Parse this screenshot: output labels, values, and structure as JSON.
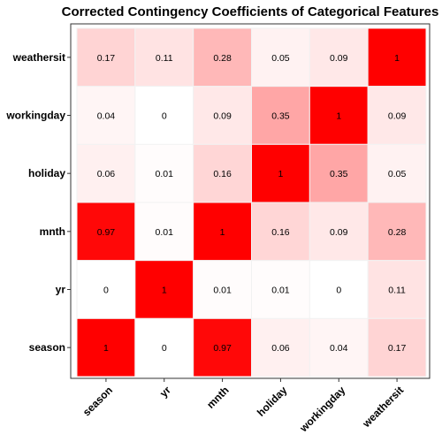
{
  "chart_data": {
    "type": "heatmap",
    "title": "Corrected Contingency Coefficients of Categorical Features",
    "x_categories": [
      "season",
      "yr",
      "mnth",
      "holiday",
      "workingday",
      "weathersit"
    ],
    "y_categories": [
      "season",
      "yr",
      "mnth",
      "holiday",
      "workingday",
      "weathersit"
    ],
    "y_order_top_to_bottom": [
      "weathersit",
      "workingday",
      "holiday",
      "mnth",
      "yr",
      "season"
    ],
    "values": [
      [
        1,
        0,
        0.97,
        0.06,
        0.04,
        0.17
      ],
      [
        0,
        1,
        0.01,
        0.01,
        0,
        0.11
      ],
      [
        0.97,
        0.01,
        1,
        0.16,
        0.09,
        0.28
      ],
      [
        0.06,
        0.01,
        0.16,
        1,
        0.35,
        0.05
      ],
      [
        0.04,
        0,
        0.09,
        0.35,
        1,
        0.09
      ],
      [
        0.17,
        0.11,
        0.28,
        0.05,
        0.09,
        1
      ]
    ],
    "value_range": [
      0,
      1
    ],
    "color_low": "#ffffff",
    "color_high": "#ff0000",
    "grid": false,
    "legend": "none"
  }
}
